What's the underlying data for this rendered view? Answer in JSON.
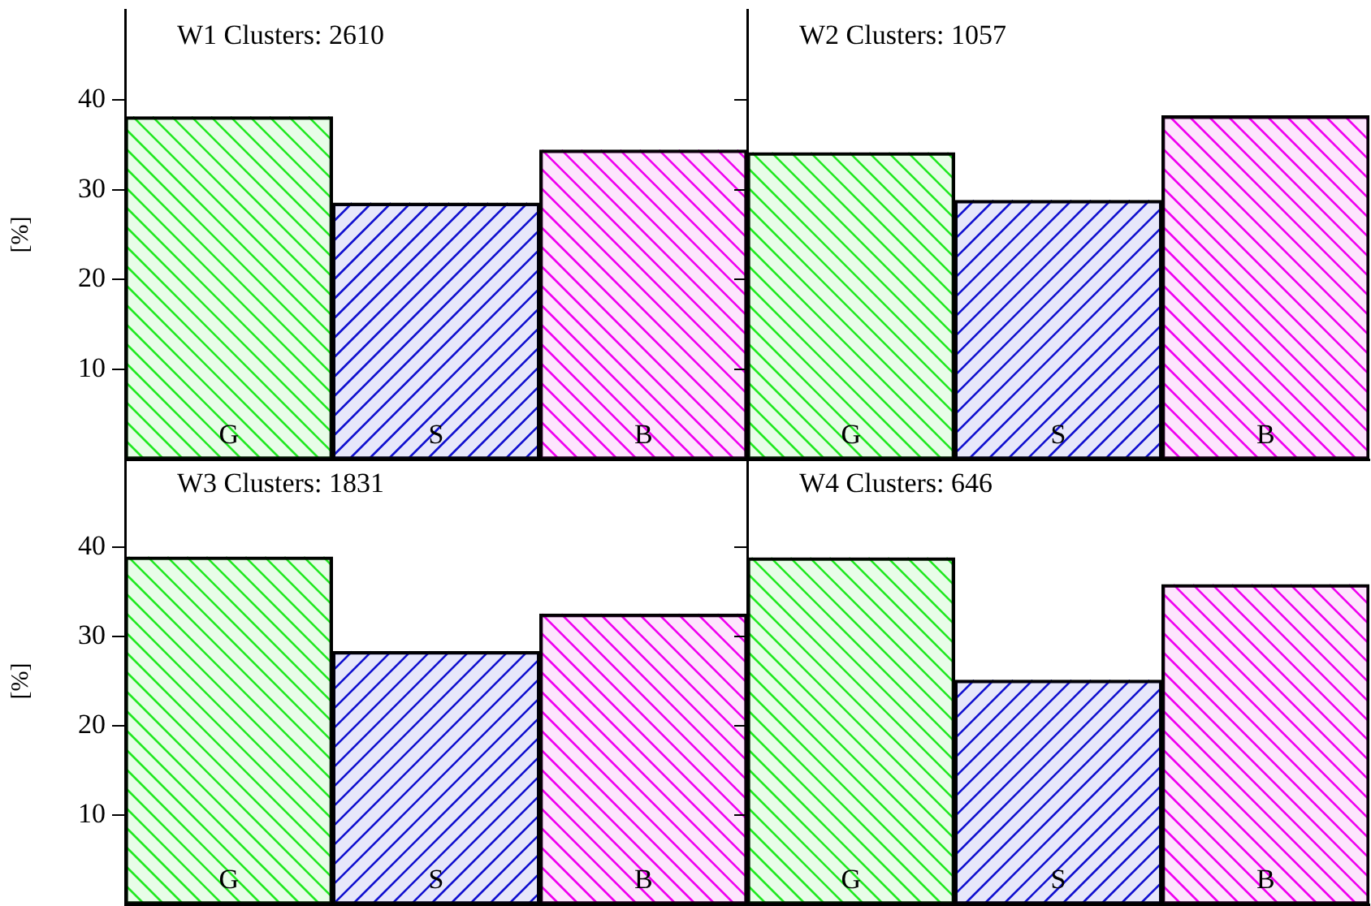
{
  "chart_data": [
    {
      "type": "bar",
      "title": "W1 Clusters: 2610",
      "ylabel": "[%]",
      "categories": [
        "G",
        "S",
        "B"
      ],
      "values": [
        38.1,
        28.5,
        34.4
      ],
      "colors": [
        "#22e822",
        "#1010d0",
        "#f000f0"
      ],
      "ylim": [
        0,
        50
      ],
      "yticks": [
        10,
        20,
        30,
        40
      ],
      "grid": false
    },
    {
      "type": "bar",
      "title": "W2 Clusters: 1057",
      "categories": [
        "G",
        "S",
        "B"
      ],
      "values": [
        34.1,
        28.8,
        38.2
      ],
      "colors": [
        "#22e822",
        "#1010d0",
        "#f000f0"
      ],
      "ylim": [
        0,
        50
      ],
      "yticks": [
        10,
        20,
        30,
        40
      ],
      "grid": false,
      "tick_labels": "x"
    },
    {
      "type": "bar",
      "title": "W3 Clusters: 1831",
      "ylabel": "[%]",
      "categories": [
        "G",
        "S",
        "B"
      ],
      "values": [
        38.9,
        28.3,
        32.5
      ],
      "colors": [
        "#22e822",
        "#1010d0",
        "#f000f0"
      ],
      "ylim": [
        0,
        50
      ],
      "yticks": [
        10,
        20,
        30,
        40
      ],
      "grid": false
    },
    {
      "type": "bar",
      "title": "W4 Clusters: 646",
      "categories": [
        "G",
        "S",
        "B"
      ],
      "values": [
        38.8,
        25.1,
        35.8
      ],
      "colors": [
        "#22e822",
        "#1010d0",
        "#f000f0"
      ],
      "ylim": [
        0,
        50
      ],
      "yticks": [
        10,
        20,
        30,
        40
      ],
      "grid": false,
      "tick_labels": "x"
    }
  ]
}
